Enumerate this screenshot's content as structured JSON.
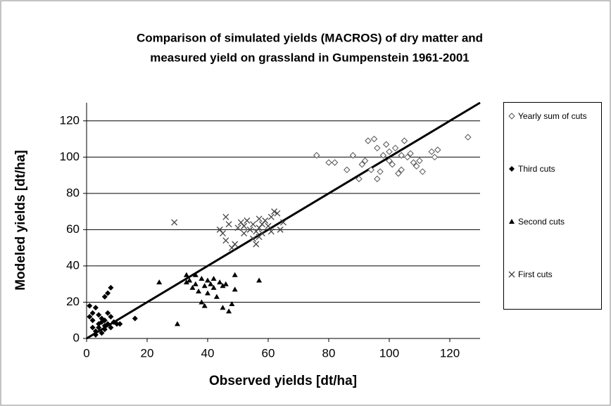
{
  "chart_data": {
    "type": "scatter",
    "title": [
      "Comparison of simulated yields (MACROS) of dry matter and",
      "measured yield on grassland in Gumpenstein 1961-2001"
    ],
    "x_label": "Observed yields [dt/ha]",
    "y_label": "Modeled yields [dt/ha]",
    "xlim": [
      0,
      130
    ],
    "ylim": [
      0,
      130
    ],
    "xticks": [
      0,
      20,
      40,
      60,
      80,
      100,
      120
    ],
    "yticks": [
      0,
      20,
      40,
      60,
      80,
      100,
      120
    ],
    "grid": true,
    "legend": "right",
    "reference_line": {
      "x": [
        0,
        130
      ],
      "y": [
        0,
        130
      ],
      "color": "#000000"
    },
    "series": [
      {
        "name": "Yearly sum of cuts",
        "marker": "open-diamond",
        "color": "#555555",
        "x": [
          76,
          80,
          82,
          86,
          88,
          90,
          91,
          92,
          93,
          94,
          95,
          96,
          96,
          97,
          98,
          99,
          100,
          100,
          101,
          102,
          103,
          104,
          104,
          105,
          106,
          107,
          108,
          109,
          110,
          111,
          114,
          115,
          116,
          126
        ],
        "y": [
          101,
          97,
          97,
          93,
          101,
          88,
          96,
          98,
          109,
          93,
          110,
          88,
          105,
          92,
          101,
          107,
          98,
          103,
          96,
          105,
          91,
          93,
          101,
          109,
          100,
          102,
          97,
          95,
          98,
          92,
          103,
          100,
          104,
          111
        ]
      },
      {
        "name": "Third cuts",
        "marker": "diamond",
        "color": "#000000",
        "x": [
          1,
          1,
          2,
          2,
          3,
          3,
          4,
          4,
          4,
          5,
          5,
          5,
          6,
          6,
          6,
          6,
          7,
          7,
          8,
          8,
          8,
          9,
          10,
          11,
          16,
          7,
          3,
          2
        ],
        "y": [
          12,
          18,
          6,
          10,
          17,
          4,
          8,
          13,
          6,
          3,
          9,
          11,
          5,
          7,
          23,
          10,
          8,
          14,
          6,
          12,
          28,
          9,
          8,
          8,
          11,
          25,
          2,
          14
        ]
      },
      {
        "name": "Second cuts",
        "marker": "triangle",
        "color": "#000000",
        "x": [
          24,
          30,
          33,
          34,
          35,
          36,
          36,
          37,
          38,
          38,
          39,
          39,
          40,
          40,
          41,
          42,
          42,
          43,
          44,
          45,
          45,
          46,
          47,
          48,
          49,
          49,
          57,
          33
        ],
        "y": [
          31,
          8,
          31,
          32,
          28,
          35,
          30,
          26,
          20,
          33,
          18,
          29,
          32,
          25,
          30,
          28,
          33,
          23,
          31,
          29,
          17,
          30,
          15,
          19,
          35,
          27,
          32,
          35
        ]
      },
      {
        "name": "First cuts",
        "marker": "cross",
        "color": "#444444",
        "x": [
          29,
          44,
          45,
          46,
          46,
          47,
          48,
          49,
          50,
          51,
          52,
          52,
          53,
          54,
          55,
          55,
          56,
          56,
          57,
          57,
          58,
          58,
          59,
          60,
          61,
          61,
          62,
          63,
          64,
          65,
          57
        ],
        "y": [
          64,
          60,
          58,
          54,
          67,
          63,
          50,
          52,
          61,
          64,
          58,
          62,
          65,
          60,
          55,
          63,
          52,
          59,
          66,
          61,
          58,
          63,
          65,
          62,
          67,
          59,
          70,
          69,
          60,
          64,
          56
        ]
      }
    ]
  }
}
